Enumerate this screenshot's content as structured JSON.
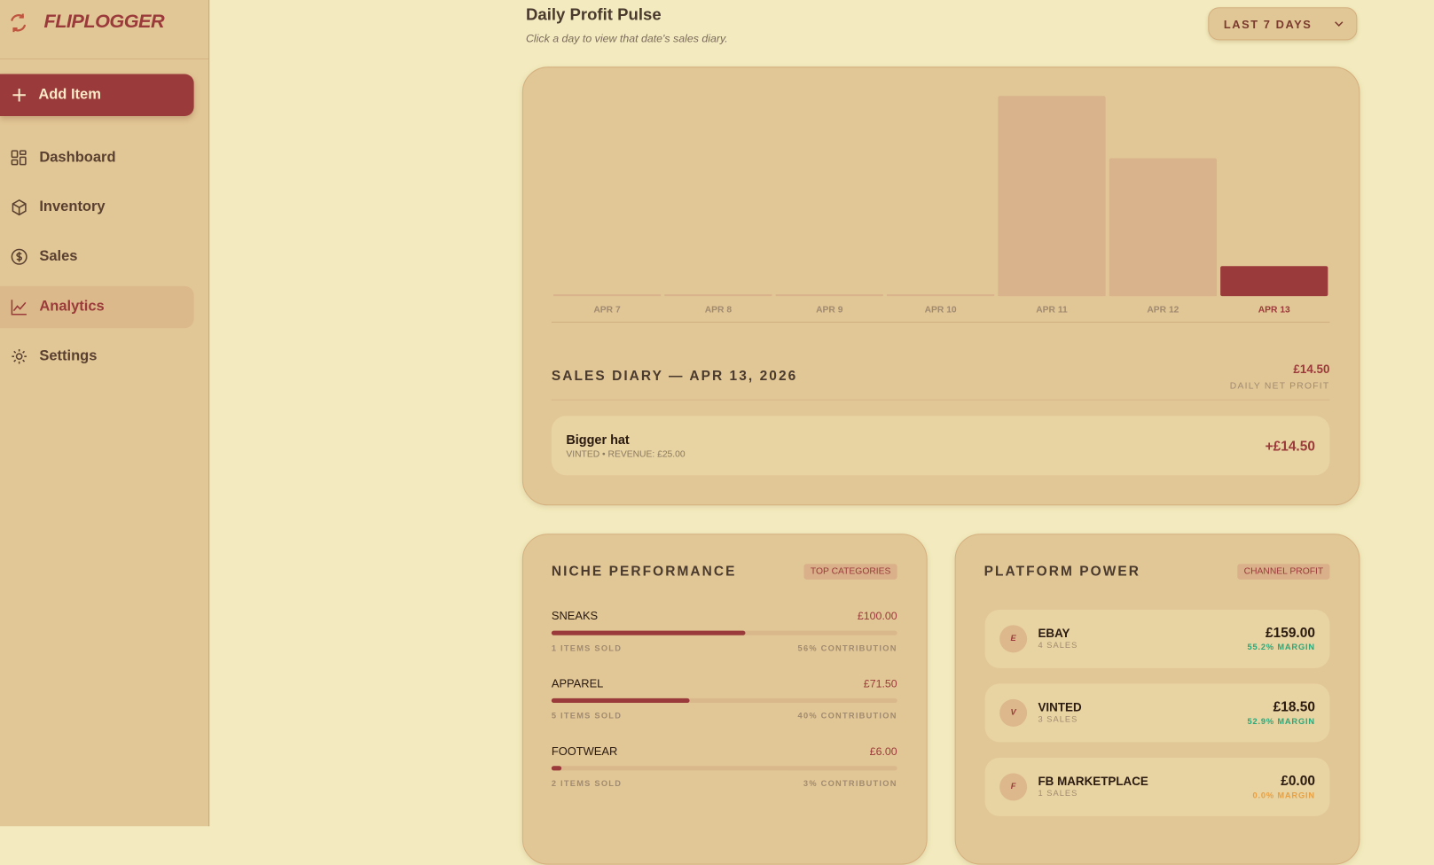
{
  "sidebar": {
    "brand": "FLIPLOGGER",
    "add_button": "Add Item",
    "nav": [
      "Dashboard",
      "Inventory",
      "Sales",
      "Analytics",
      "Settings"
    ]
  },
  "header": {
    "title": "Daily Profit Pulse",
    "subtitle": "Click a day to view that date's sales diary.",
    "range": "LAST 7 DAYS"
  },
  "chart_data": {
    "type": "bar",
    "categories": [
      "APR 7",
      "APR 8",
      "APR 9",
      "APR 10",
      "APR 11",
      "APR 12",
      "APR 13"
    ],
    "values": [
      0,
      0,
      0,
      0,
      96.5,
      66.5,
      14.5
    ],
    "color": "#d9b38c",
    "highlight_color": "#9b3a3a"
  },
  "diary": {
    "title": "SALES DIARY — APR 13, 2026",
    "net_profit": "£14.50",
    "net_label": "DAILY NET PROFIT",
    "entries": [
      {
        "name": "Bigger hat",
        "meta": "VINTED • REVENUE: £25.00",
        "profit": "+£14.50"
      }
    ]
  },
  "niche": {
    "title": "NICHE PERFORMANCE",
    "badge": "TOP CATEGORIES",
    "rows": [
      {
        "name": "SNEAKS",
        "value": "£100.00",
        "sold": "1 ITEMS SOLD",
        "share": 56,
        "contribution": "56% CONTRIBUTION"
      },
      {
        "name": "APPAREL",
        "value": "£71.50",
        "sold": "5 ITEMS SOLD",
        "share": 40,
        "contribution": "40% CONTRIBUTION"
      },
      {
        "name": "FOOTWEAR",
        "value": "£6.00",
        "sold": "2 ITEMS SOLD",
        "share": 3,
        "contribution": "3% CONTRIBUTION"
      }
    ]
  },
  "platform": {
    "title": "PLATFORM POWER",
    "badge": "CHANNEL PROFIT",
    "rows": [
      {
        "initial": "E",
        "name": "EBAY",
        "sales": "4 SALES",
        "profit": "£159.00",
        "margin": "55.2% MARGIN",
        "margin_color": "#2aa87a"
      },
      {
        "initial": "V",
        "name": "VINTED",
        "sales": "3 SALES",
        "profit": "£18.50",
        "margin": "52.9% MARGIN",
        "margin_color": "#2aa87a"
      },
      {
        "initial": "F",
        "name": "FB MARKETPLACE",
        "sales": "1 SALES",
        "profit": "£0.00",
        "margin": "0.0% MARGIN",
        "margin_color": "#e8a040"
      }
    ]
  }
}
